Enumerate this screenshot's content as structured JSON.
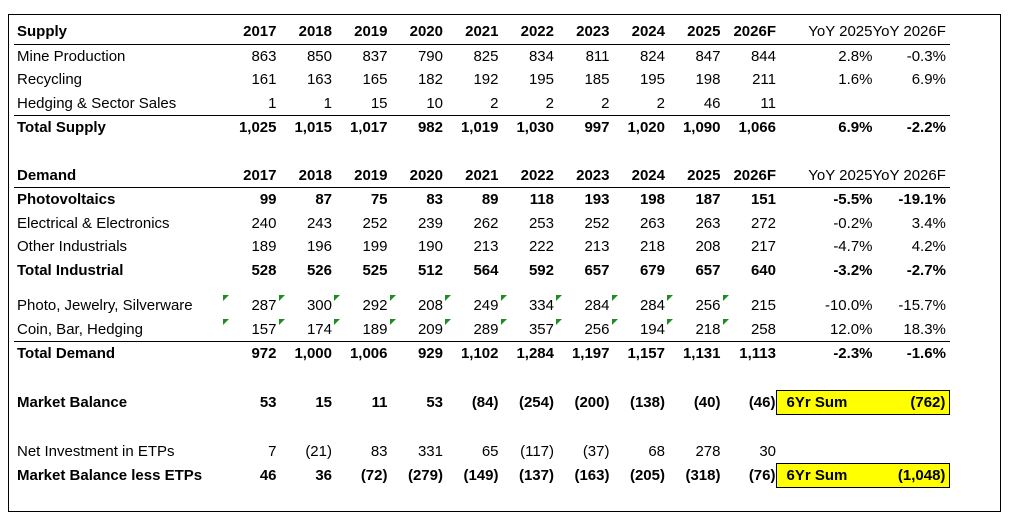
{
  "years": [
    "2017",
    "2018",
    "2019",
    "2020",
    "2021",
    "2022",
    "2023",
    "2024",
    "2025",
    "2026F"
  ],
  "yoy_headers": [
    "YoY 2025",
    "YoY 2026F"
  ],
  "supply": {
    "title": "Supply",
    "rows": [
      {
        "label": "Mine Production",
        "values": [
          "863",
          "850",
          "837",
          "790",
          "825",
          "834",
          "811",
          "824",
          "847",
          "844"
        ],
        "yoy": [
          "2.8%",
          "-0.3%"
        ]
      },
      {
        "label": "Recycling",
        "values": [
          "161",
          "163",
          "165",
          "182",
          "192",
          "195",
          "185",
          "195",
          "198",
          "211"
        ],
        "yoy": [
          "1.6%",
          "6.9%"
        ]
      },
      {
        "label": "Hedging & Sector Sales",
        "values": [
          "1",
          "1",
          "15",
          "10",
          "2",
          "2",
          "2",
          "2",
          "46",
          "11"
        ],
        "yoy": [
          "",
          ""
        ]
      }
    ],
    "total": {
      "label": "Total Supply",
      "values": [
        "1,025",
        "1,015",
        "1,017",
        "982",
        "1,019",
        "1,030",
        "997",
        "1,020",
        "1,090",
        "1,066"
      ],
      "yoy": [
        "6.9%",
        "-2.2%"
      ]
    }
  },
  "demand": {
    "title": "Demand",
    "photovoltaics": {
      "label": "Photovoltaics",
      "values": [
        "99",
        "87",
        "75",
        "83",
        "89",
        "118",
        "193",
        "198",
        "187",
        "151"
      ],
      "yoy": [
        "-5.5%",
        "-19.1%"
      ]
    },
    "electrical": {
      "label": "Electrical & Electronics",
      "values": [
        "240",
        "243",
        "252",
        "239",
        "262",
        "253",
        "252",
        "263",
        "263",
        "272"
      ],
      "yoy": [
        "-0.2%",
        "3.4%"
      ]
    },
    "other": {
      "label": "Other Industrials",
      "values": [
        "189",
        "196",
        "199",
        "190",
        "213",
        "222",
        "213",
        "218",
        "208",
        "217"
      ],
      "yoy": [
        "-4.7%",
        "4.2%"
      ]
    },
    "total_industrial": {
      "label": "Total Industrial",
      "values": [
        "528",
        "526",
        "525",
        "512",
        "564",
        "592",
        "657",
        "679",
        "657",
        "640"
      ],
      "yoy": [
        "-3.2%",
        "-2.7%"
      ]
    },
    "photo_jewelry": {
      "label": "Photo, Jewelry, Silverware",
      "values": [
        "287",
        "300",
        "292",
        "208",
        "249",
        "334",
        "284",
        "284",
        "256",
        "215"
      ],
      "yoy": [
        "-10.0%",
        "-15.7%"
      ]
    },
    "coin_bar": {
      "label": "Coin, Bar, Hedging",
      "values": [
        "157",
        "174",
        "189",
        "209",
        "289",
        "357",
        "256",
        "194",
        "218",
        "258"
      ],
      "yoy": [
        "12.0%",
        "18.3%"
      ]
    },
    "total": {
      "label": "Total Demand",
      "values": [
        "972",
        "1,000",
        "1,006",
        "929",
        "1,102",
        "1,284",
        "1,197",
        "1,157",
        "1,131",
        "1,113"
      ],
      "yoy": [
        "-2.3%",
        "-1.6%"
      ]
    }
  },
  "market_balance": {
    "label": "Market Balance",
    "values": [
      "53",
      "15",
      "11",
      "53",
      "(84)",
      "(254)",
      "(200)",
      "(138)",
      "(40)",
      "(46)"
    ],
    "sum_label": "6Yr Sum",
    "sum_value": "(762)"
  },
  "net_investment": {
    "label": "Net Investment in ETPs",
    "values": [
      "7",
      "(21)",
      "83",
      "331",
      "65",
      "(117)",
      "(37)",
      "68",
      "278",
      "30"
    ]
  },
  "balance_less_etps": {
    "label": "Market Balance less ETPs",
    "values": [
      "46",
      "36",
      "(72)",
      "(279)",
      "(149)",
      "(137)",
      "(163)",
      "(205)",
      "(318)",
      "(76)"
    ],
    "sum_label": "6Yr Sum",
    "sum_value": "(1,048)"
  },
  "colors": {
    "highlight": "#ffff00",
    "comment_marker": "#1e8c1e"
  }
}
